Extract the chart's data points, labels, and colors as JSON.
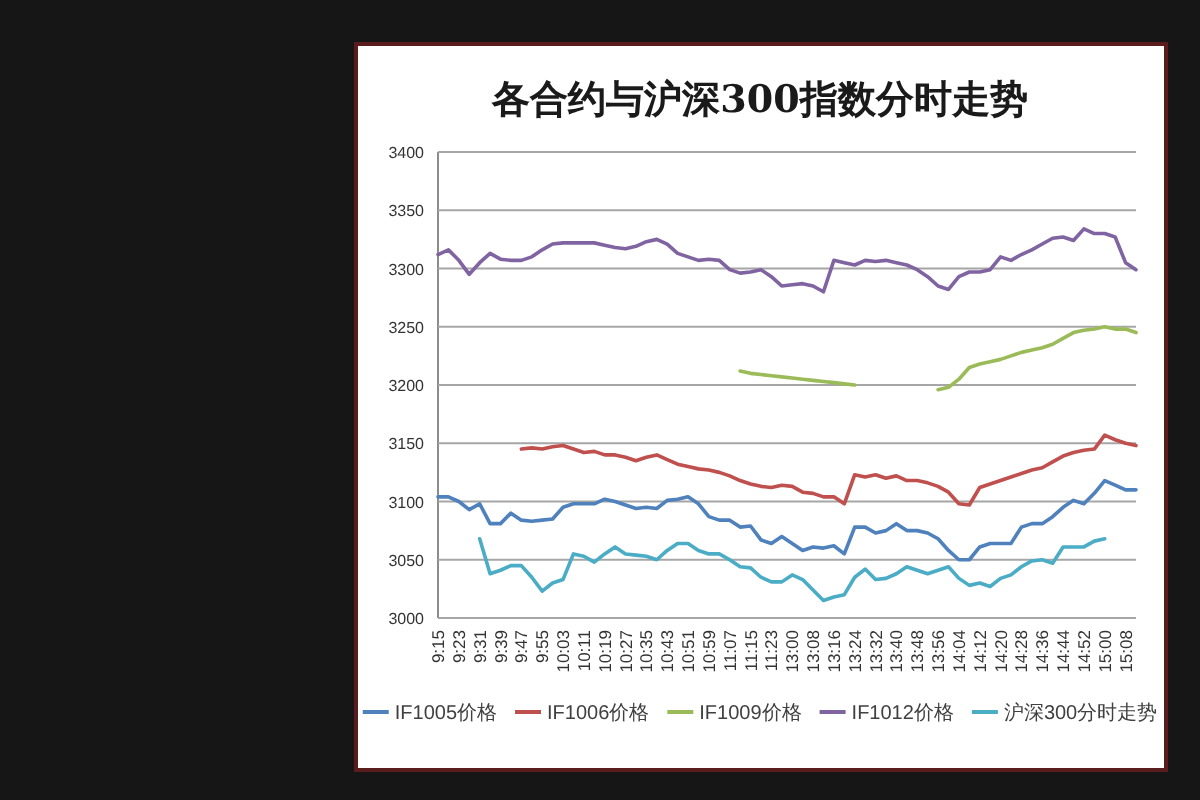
{
  "chart_data": {
    "type": "line",
    "title": "各合约与沪深300指数分时走势",
    "categories": [
      "9:15",
      null,
      "9:23",
      null,
      "9:31",
      null,
      "9:39",
      null,
      "9:47",
      null,
      "9:55",
      null,
      "10:03",
      null,
      "10:11",
      null,
      "10:19",
      null,
      "10:27",
      null,
      "10:35",
      null,
      "10:43",
      null,
      "10:51",
      null,
      "10:59",
      null,
      "11:07",
      null,
      "11:15",
      null,
      "11:23",
      null,
      "13:00",
      null,
      "13:08",
      null,
      "13:16",
      null,
      "13:24",
      null,
      "13:32",
      null,
      "13:40",
      null,
      "13:48",
      null,
      "13:56",
      null,
      "14:04",
      null,
      "14:12",
      null,
      "14:20",
      null,
      "14:28",
      null,
      "14:36",
      null,
      "14:44",
      null,
      "14:52",
      null,
      "15:00",
      null,
      "15:08",
      null
    ],
    "series": [
      {
        "name": "IF1005价格",
        "color": "#4f81bd",
        "values": [
          3104,
          3104,
          3100,
          3093,
          3098,
          3081,
          3081,
          3090,
          3084,
          3083,
          3084,
          3085,
          3095,
          3098,
          3098,
          3098,
          3102,
          3100,
          3097,
          3094,
          3095,
          3094,
          3101,
          3102,
          3104,
          3098,
          3087,
          3084,
          3084,
          3078,
          3079,
          3067,
          3064,
          3070,
          3064,
          3058,
          3061,
          3060,
          3062,
          3055,
          3078,
          3078,
          3073,
          3075,
          3081,
          3075,
          3075,
          3073,
          3068,
          3058,
          3050,
          3050,
          3061,
          3064,
          3064,
          3064,
          3078,
          3081,
          3081,
          3087,
          3095,
          3101,
          3098,
          3107,
          3118,
          3114,
          3110,
          3110
        ]
      },
      {
        "name": "IF1006价格",
        "color": "#c0504d",
        "values": [
          null,
          null,
          null,
          null,
          null,
          null,
          null,
          null,
          3145,
          3146,
          3145,
          3147,
          3148,
          3145,
          3142,
          3143,
          3140,
          3140,
          3138,
          3135,
          3138,
          3140,
          3136,
          3132,
          3130,
          3128,
          3127,
          3125,
          3122,
          3118,
          3115,
          3113,
          3112,
          3114,
          3113,
          3108,
          3107,
          3104,
          3104,
          3098,
          3123,
          3121,
          3123,
          3120,
          3122,
          3118,
          3118,
          3116,
          3113,
          3108,
          3098,
          3097,
          3112,
          3115,
          3118,
          3121,
          3124,
          3127,
          3129,
          3134,
          3139,
          3142,
          3144,
          3145,
          3157,
          3153,
          3150,
          3148
        ]
      },
      {
        "name": "IF1009价格",
        "color": "#9bbb59",
        "values": [
          null,
          null,
          null,
          null,
          null,
          null,
          null,
          null,
          null,
          null,
          null,
          null,
          null,
          null,
          null,
          null,
          null,
          null,
          null,
          null,
          null,
          null,
          null,
          null,
          null,
          null,
          null,
          null,
          null,
          3212,
          3210,
          3209,
          3208,
          3207,
          3206,
          3205,
          3204,
          3203,
          3202,
          3201,
          3200,
          null,
          null,
          null,
          null,
          null,
          null,
          null,
          3196,
          3198,
          3205,
          3215,
          3218,
          3220,
          3222,
          3225,
          3228,
          3230,
          3232,
          3235,
          3240,
          3245,
          3247,
          3248,
          3250,
          3248,
          3248,
          3245
        ]
      },
      {
        "name": "IF1012价格",
        "color": "#8064a2",
        "values": [
          3312,
          3316,
          3307,
          3295,
          3305,
          3313,
          3308,
          3307,
          3307,
          3310,
          3316,
          3321,
          3322,
          3322,
          3322,
          3322,
          3320,
          3318,
          3317,
          3319,
          3323,
          3325,
          3321,
          3313,
          3310,
          3307,
          3308,
          3307,
          3299,
          3296,
          3297,
          3299,
          3293,
          3285,
          3286,
          3287,
          3285,
          3280,
          3307,
          3305,
          3303,
          3307,
          3306,
          3307,
          3305,
          3303,
          3299,
          3293,
          3285,
          3282,
          3293,
          3297,
          3297,
          3299,
          3310,
          3307,
          3312,
          3316,
          3321,
          3326,
          3327,
          3324,
          3334,
          3330,
          3330,
          3327,
          3305,
          3299
        ]
      },
      {
        "name": "沪深300分时走势",
        "color": "#4bacc6",
        "values": [
          null,
          null,
          null,
          null,
          3068,
          3038,
          3041,
          3045,
          3045,
          3035,
          3023,
          3030,
          3033,
          3055,
          3053,
          3048,
          3055,
          3061,
          3055,
          3054,
          3053,
          3050,
          3058,
          3064,
          3064,
          3058,
          3055,
          3055,
          3050,
          3044,
          3043,
          3035,
          3031,
          3031,
          3037,
          3033,
          3024,
          3015,
          3018,
          3020,
          3035,
          3042,
          3033,
          3034,
          3038,
          3044,
          3041,
          3038,
          3041,
          3044,
          3034,
          3028,
          3030,
          3027,
          3034,
          3037,
          3044,
          3049,
          3050,
          3047,
          3061,
          3061,
          3061,
          3066,
          3068,
          null,
          null,
          null
        ]
      }
    ],
    "ylim": [
      3000,
      3400
    ],
    "yticks": [
      3000,
      3050,
      3100,
      3150,
      3200,
      3250,
      3300,
      3350,
      3400
    ],
    "grid": "y",
    "legend": "bottom"
  }
}
